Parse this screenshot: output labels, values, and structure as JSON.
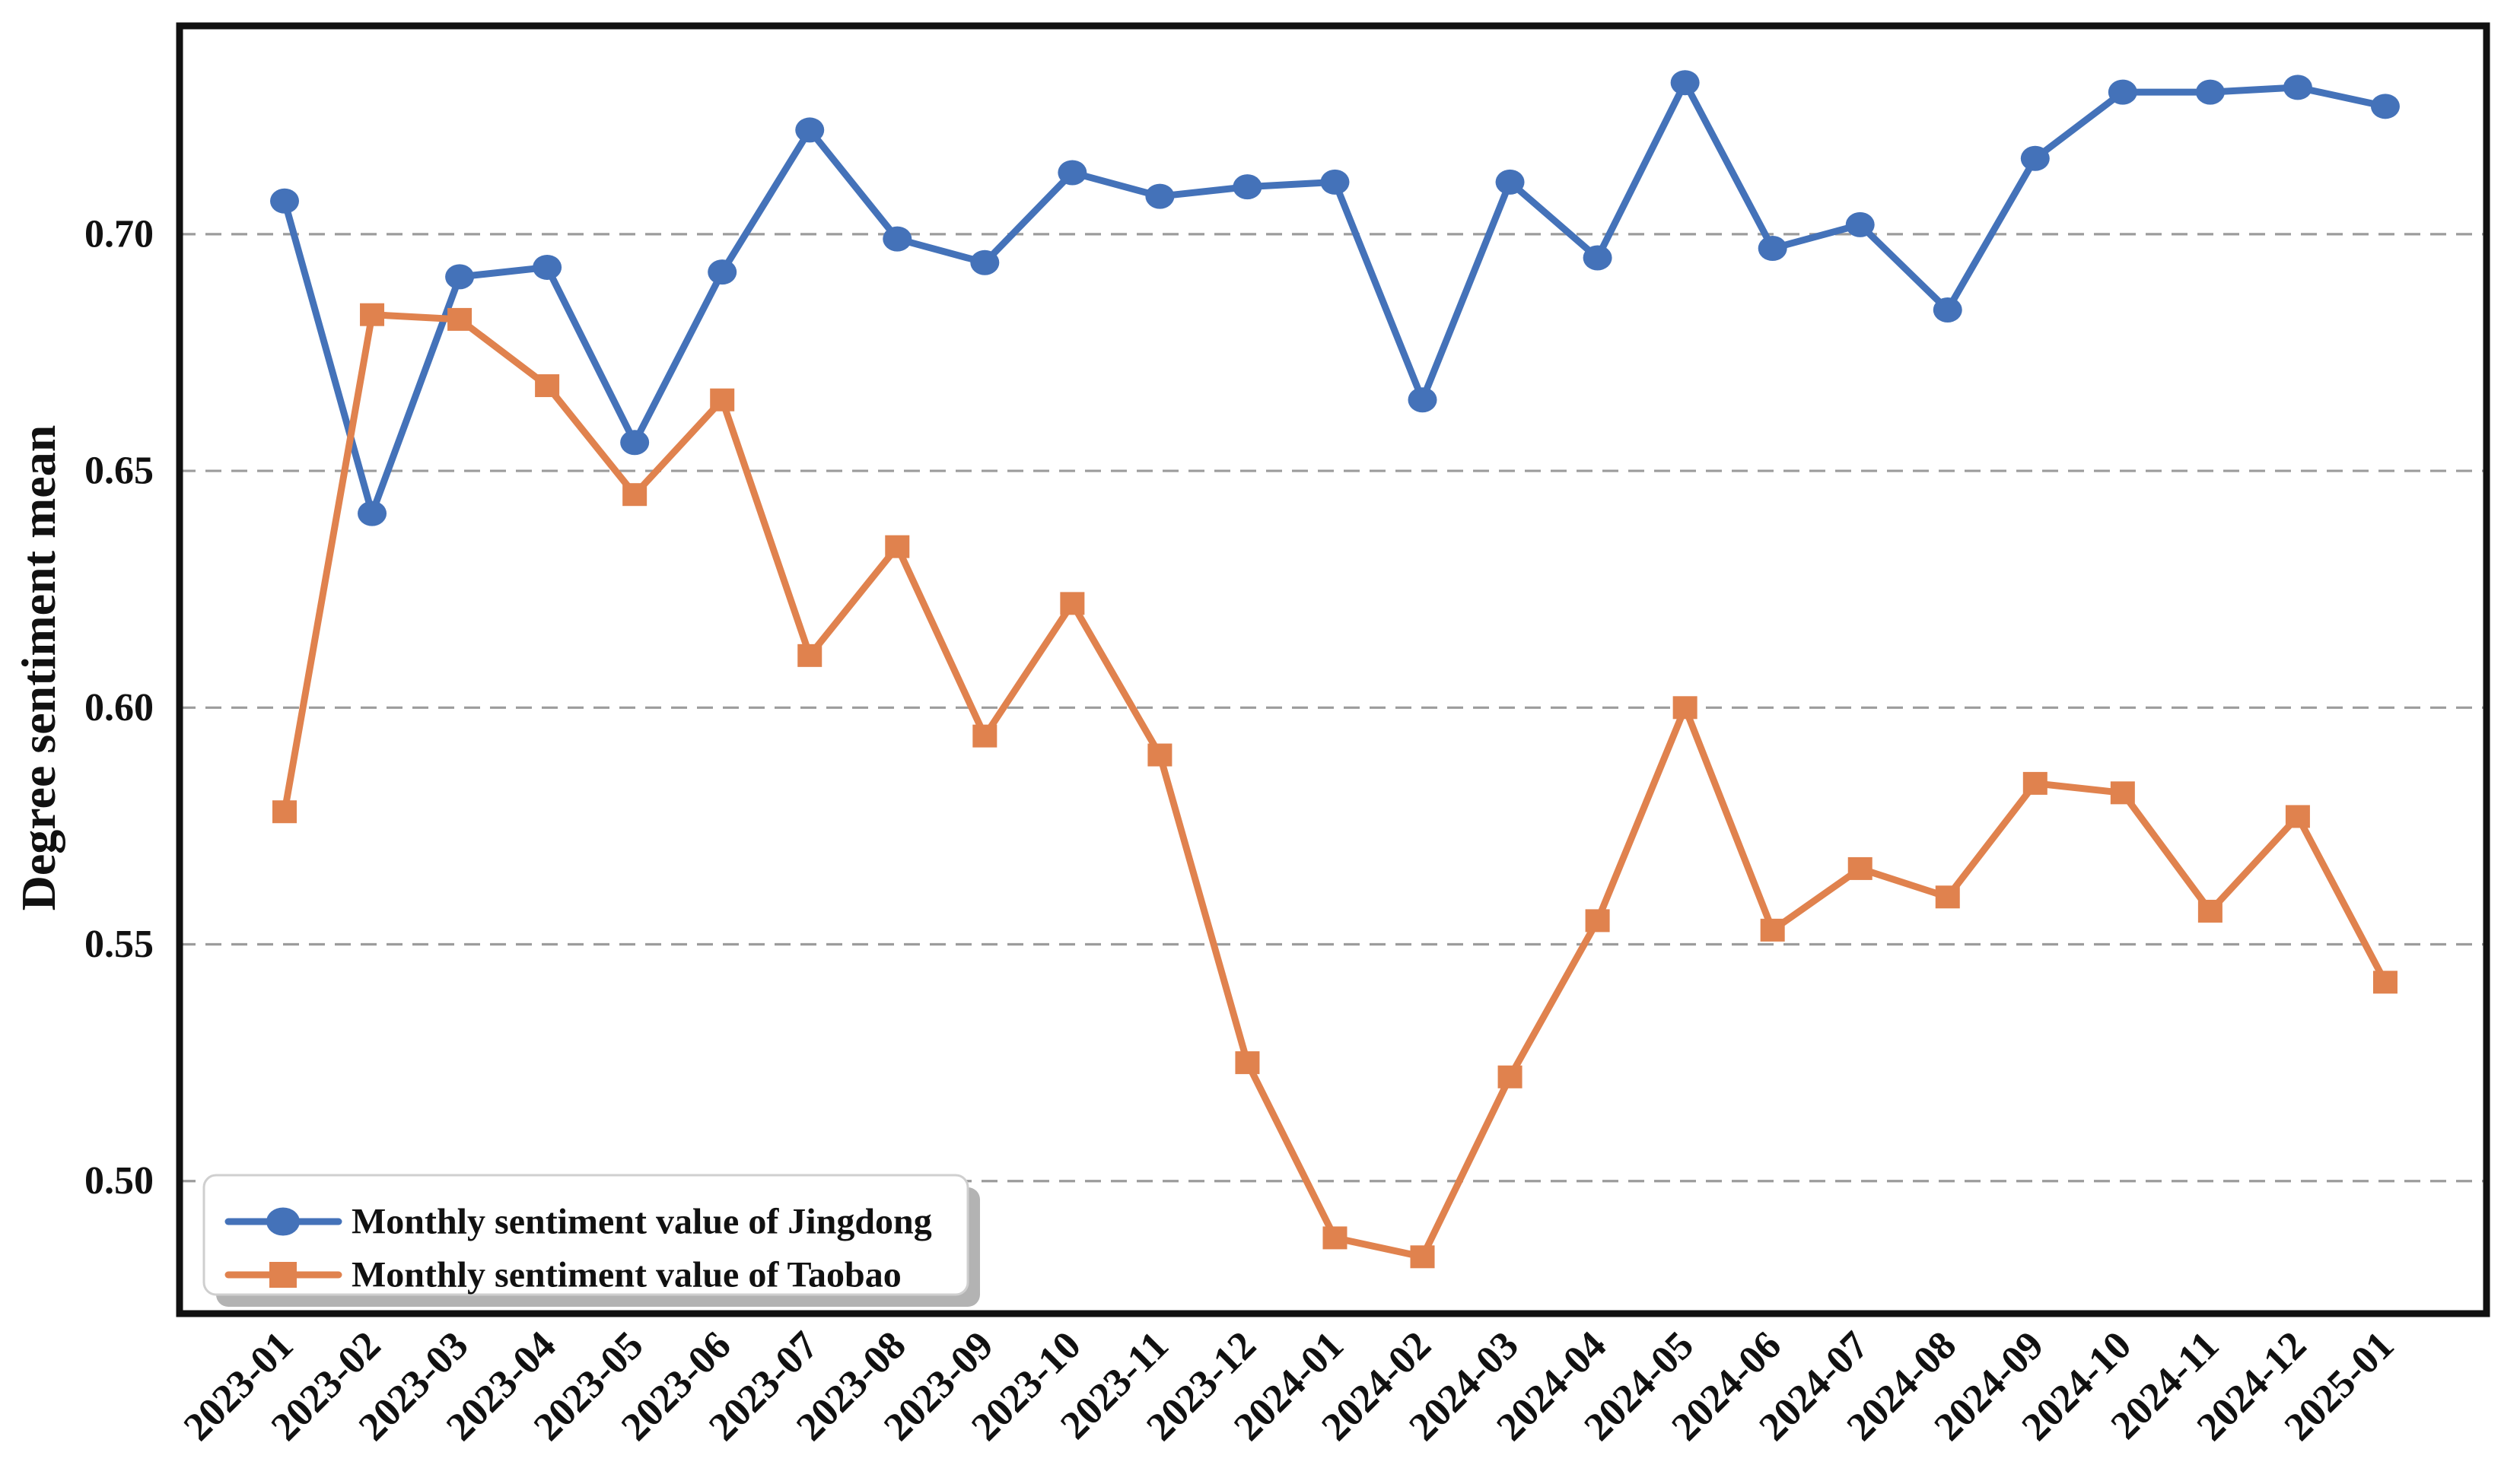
{
  "chart_data": {
    "type": "line",
    "title": "",
    "xlabel": "",
    "ylabel": "Degree sentiment mean",
    "x_categories": [
      "2023-01",
      "2023-02",
      "2023-03",
      "2023-04",
      "2023-05",
      "2023-06",
      "2023-07",
      "2023-08",
      "2023-09",
      "2023-10",
      "2023-11",
      "2023-12",
      "2024-01",
      "2024-02",
      "2024-03",
      "2024-04",
      "2024-05",
      "2024-06",
      "2024-07",
      "2024-08",
      "2024-09",
      "2024-10",
      "2024-11",
      "2024-12",
      "2025-01"
    ],
    "x_tick_rotation": 45,
    "y_ticks": [
      "0.50",
      "0.55",
      "0.60",
      "0.65",
      "0.70"
    ],
    "y_tick_values": [
      0.5,
      0.55,
      0.6,
      0.65,
      0.7
    ],
    "ylim": [
      0.472,
      0.744
    ],
    "grid": "horizontal-dashed",
    "legend_position": "lower-left",
    "series": [
      {
        "name": "Monthly sentiment value of Jingdong",
        "marker": "circle",
        "color": "#4472b9",
        "values": [
          0.707,
          0.641,
          0.691,
          0.693,
          0.656,
          0.692,
          0.722,
          0.699,
          0.694,
          0.713,
          0.708,
          0.71,
          0.711,
          0.665,
          0.711,
          0.695,
          0.732,
          0.697,
          0.702,
          0.684,
          0.716,
          0.73,
          0.73,
          0.731,
          0.727
        ]
      },
      {
        "name": "Monthly sentiment value of Taobao",
        "marker": "square",
        "color": "#e0824e",
        "values": [
          0.578,
          0.683,
          0.682,
          0.668,
          0.645,
          0.665,
          0.611,
          0.634,
          0.594,
          0.622,
          0.59,
          0.525,
          0.488,
          0.484,
          0.522,
          0.555,
          0.6,
          0.553,
          0.566,
          0.56,
          0.584,
          0.582,
          0.557,
          0.577,
          0.542
        ]
      }
    ],
    "style": {
      "grid_color": "#9c9c9c",
      "spine_color": "#111111",
      "legend_border_color": "#cfcfcf",
      "legend_shadow_color": "#b3b3b3",
      "background": "#ffffff"
    }
  }
}
